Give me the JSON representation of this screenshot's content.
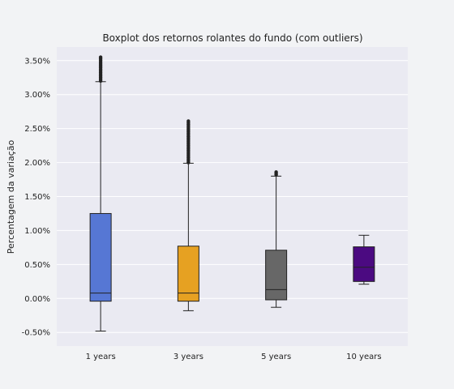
{
  "chart_data": {
    "type": "box",
    "title": "Boxplot dos retornos rolantes do fundo (com outliers)",
    "xlabel": "",
    "ylabel": "Percentagem da variação",
    "ylim": [
      -0.7,
      3.7
    ],
    "yticks": [
      -0.5,
      0.0,
      0.5,
      1.0,
      1.5,
      2.0,
      2.5,
      3.0,
      3.5
    ],
    "ytick_labels": [
      "-0.50%",
      "0.00%",
      "0.50%",
      "1.00%",
      "1.50%",
      "2.00%",
      "2.50%",
      "3.00%",
      "3.50%"
    ],
    "grid": true,
    "categories": [
      "1 years",
      "3 years",
      "5 years",
      "10 years"
    ],
    "series": [
      {
        "category": "1 years",
        "color": "#5677d4",
        "whisker_low": -0.48,
        "q1": -0.04,
        "median": 0.08,
        "q3": 1.25,
        "whisker_high": 3.19,
        "outliers_range": [
          3.2,
          3.55
        ]
      },
      {
        "category": "3 years",
        "color": "#e6a122",
        "whisker_low": -0.18,
        "q1": -0.04,
        "median": 0.08,
        "q3": 0.77,
        "whisker_high": 1.99,
        "outliers_range": [
          2.0,
          2.61
        ]
      },
      {
        "category": "5 years",
        "color": "#676767",
        "whisker_low": -0.13,
        "q1": -0.02,
        "median": 0.13,
        "q3": 0.71,
        "whisker_high": 1.8,
        "outliers_range": [
          1.82,
          1.86
        ]
      },
      {
        "category": "10 years",
        "color": "#4b0a81",
        "whisker_low": 0.21,
        "q1": 0.25,
        "median": 0.46,
        "q3": 0.76,
        "whisker_high": 0.93,
        "outliers_range": null
      }
    ]
  }
}
